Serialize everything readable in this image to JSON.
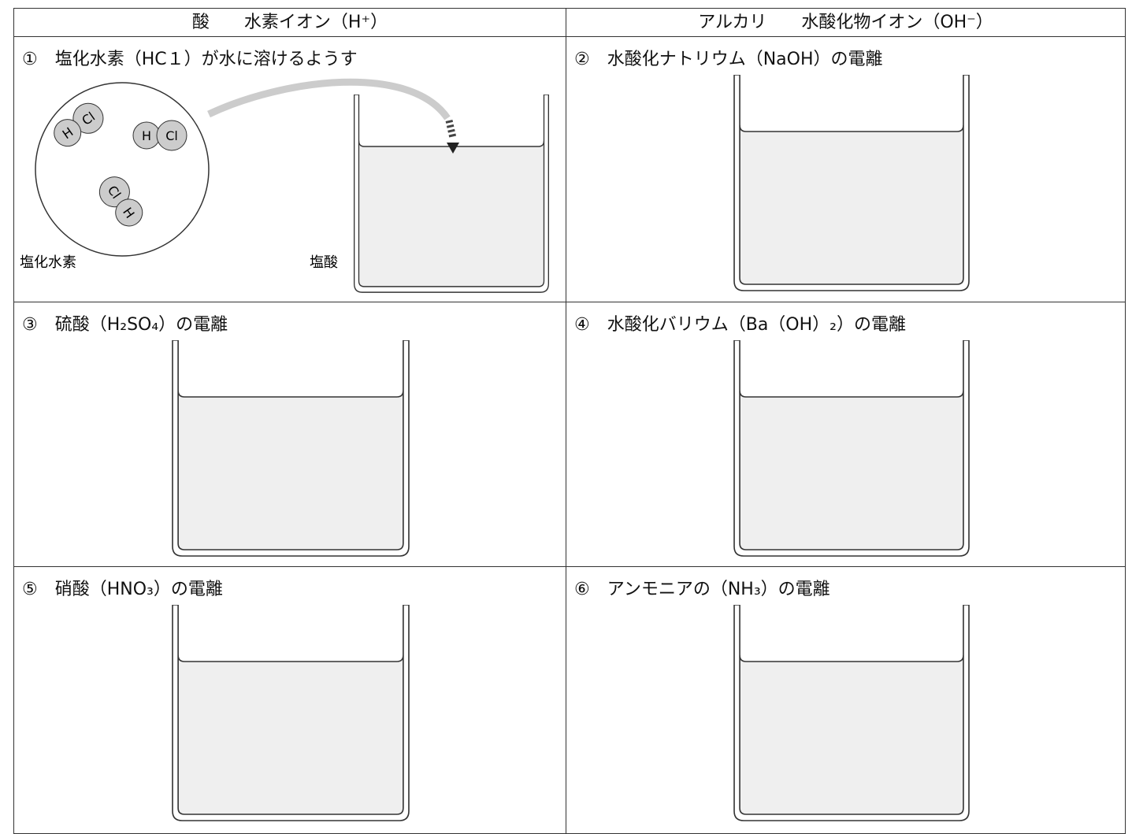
{
  "table": {
    "header": [
      "酸　　水素イオン（H⁺）",
      "アルカリ　　水酸化物イオン（OH⁻）"
    ],
    "cells": [
      "①　塩化水素（HC１）が水に溶けるようす",
      "②　水酸化ナトリウム（NaOH）の電離",
      "③　硫酸（H₂SO₄）の電離",
      "④　水酸化バリウム（Ba（OH）₂）の電離",
      "⑤　硝酸（HNO₃）の電離",
      "⑥　アンモニアの（NH₃）の電離"
    ]
  },
  "figure": {
    "molecules": [
      [
        "H",
        "Cl"
      ],
      [
        "H",
        "Cl"
      ],
      [
        "Cl",
        "H"
      ]
    ],
    "gas_label": "塩化水素",
    "solution_label": "塩酸"
  }
}
